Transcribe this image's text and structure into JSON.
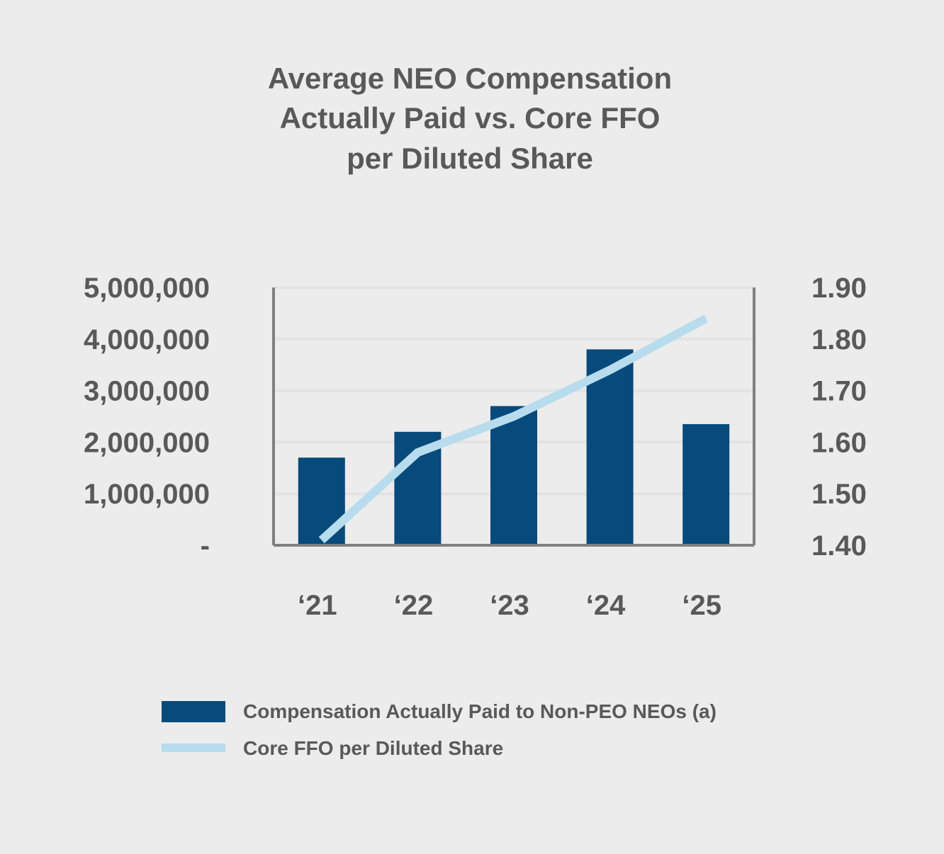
{
  "chart_data": {
    "type": "bar",
    "title_lines": [
      "Average NEO Compensation",
      "Actually Paid vs. Core FFO",
      "per Diluted Share"
    ],
    "categories": [
      "‘21",
      "‘22",
      "‘23",
      "‘24",
      "‘25"
    ],
    "series": [
      {
        "name": "Compensation Actually Paid to Non-PEO NEOs (a)",
        "type": "bar",
        "axis": "left",
        "color": "#064b7c",
        "values": [
          1700000,
          2200000,
          2700000,
          3800000,
          2350000
        ]
      },
      {
        "name": "Core FFO per Diluted Share",
        "type": "line",
        "axis": "right",
        "color": "#b7dced",
        "values": [
          1.41,
          1.58,
          1.65,
          1.74,
          1.84
        ]
      }
    ],
    "y_left": {
      "min": 0,
      "max": 5000000,
      "ticks": [
        0,
        1000000,
        2000000,
        3000000,
        4000000,
        5000000
      ],
      "tick_labels": [
        "-",
        "1,000,000",
        "2,000,000",
        "3,000,000",
        "4,000,000",
        "5,000,000"
      ]
    },
    "y_right": {
      "min": 1.4,
      "max": 1.9,
      "ticks": [
        1.4,
        1.5,
        1.6,
        1.7,
        1.8,
        1.9
      ],
      "tick_labels": [
        "1.40",
        "1.50",
        "1.60",
        "1.70",
        "1.80",
        "1.90"
      ]
    },
    "grid": true,
    "legend_position": "bottom",
    "colors": {
      "background": "#ececec",
      "text": "#595959",
      "grid": "#e3e3e3",
      "axis": "#808080"
    }
  }
}
